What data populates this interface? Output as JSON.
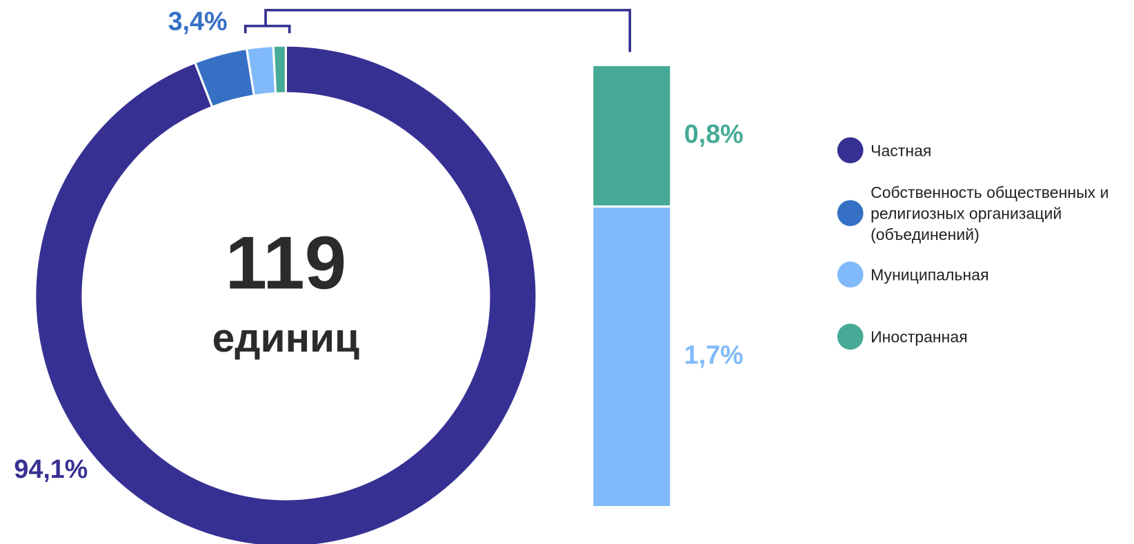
{
  "chart_data": {
    "type": "donut",
    "center_value": 119,
    "center_label": "единиц",
    "categories": [
      "Частная",
      "Собственность общественных и религиозных организаций (объединений)",
      "Муниципальная",
      "Иностранная"
    ],
    "values": [
      94.1,
      3.4,
      1.7,
      0.8
    ],
    "value_labels": [
      "94,1%",
      "3,4%",
      "1,7%",
      "0,8%"
    ],
    "colors": [
      "#373093",
      "#3570c5",
      "#80bafa",
      "#46aa96"
    ]
  }
}
